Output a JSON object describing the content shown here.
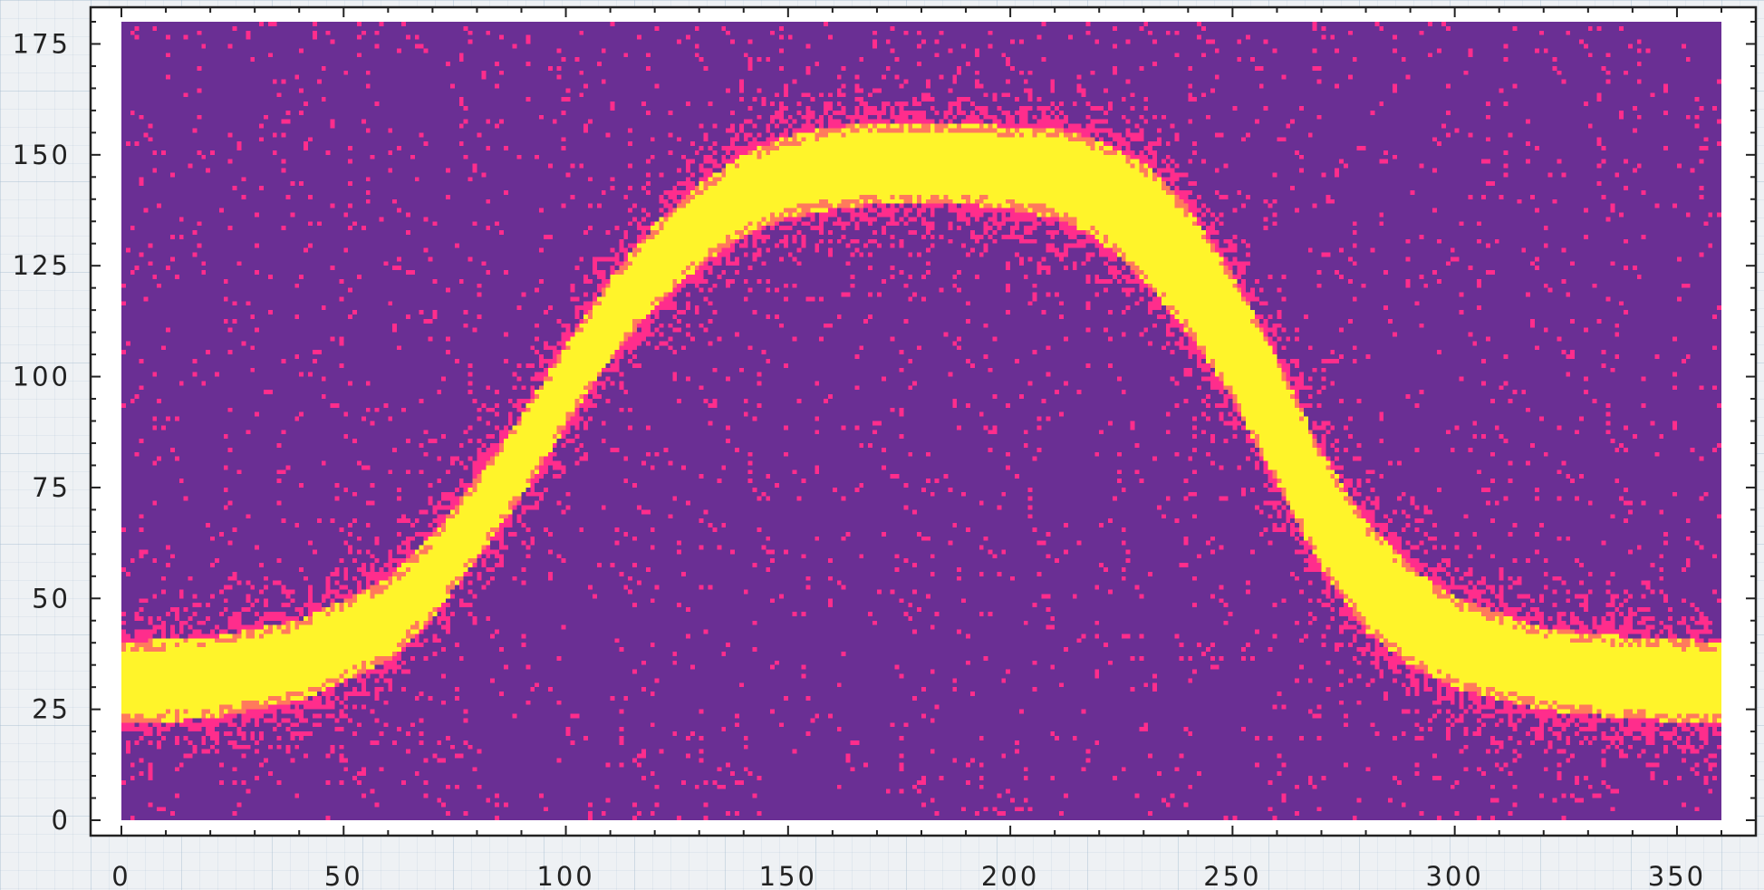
{
  "chart_data": {
    "type": "heatmap",
    "title": "",
    "xlabel": "",
    "ylabel": "",
    "xlim": [
      0,
      360
    ],
    "ylim": [
      0,
      180
    ],
    "grid": false,
    "legend": "none",
    "colorbar": false,
    "colormap": {
      "background": "#6a2f94",
      "noise": "#ff2d8c",
      "edge": "#ff7a5c",
      "core": "#fff42a"
    },
    "x_ticks": [
      0,
      50,
      100,
      150,
      200,
      250,
      300,
      350
    ],
    "x_tick_labels": [
      "0",
      "50",
      "100",
      "150",
      "200",
      "250",
      "300",
      "350"
    ],
    "y_ticks": [
      0,
      25,
      50,
      75,
      100,
      125,
      150,
      175
    ],
    "y_tick_labels": [
      "0",
      "25",
      "50",
      "75",
      "100",
      "125",
      "150",
      "175"
    ],
    "band": {
      "description_of_shape": "bright band following a smooth step up then down",
      "x": [
        0,
        20,
        40,
        60,
        70,
        80,
        90,
        100,
        110,
        120,
        130,
        140,
        150,
        160,
        170,
        180,
        190,
        200,
        210,
        220,
        230,
        240,
        250,
        260,
        270,
        280,
        290,
        300,
        320,
        340,
        360
      ],
      "y_center": [
        31,
        32,
        36,
        45,
        55,
        68,
        82,
        98,
        113,
        125,
        134,
        141,
        145,
        147,
        148,
        148,
        148,
        147,
        146,
        142,
        135,
        124,
        109,
        90,
        70,
        55,
        46,
        40,
        34,
        32,
        31
      ],
      "half_width": [
        7,
        7,
        7,
        7,
        7,
        7,
        7,
        7,
        7,
        7,
        7,
        7,
        7,
        7,
        7,
        7,
        7,
        7,
        8,
        9,
        11,
        12,
        12,
        12,
        11,
        10,
        9,
        8,
        7,
        7,
        7
      ]
    }
  }
}
